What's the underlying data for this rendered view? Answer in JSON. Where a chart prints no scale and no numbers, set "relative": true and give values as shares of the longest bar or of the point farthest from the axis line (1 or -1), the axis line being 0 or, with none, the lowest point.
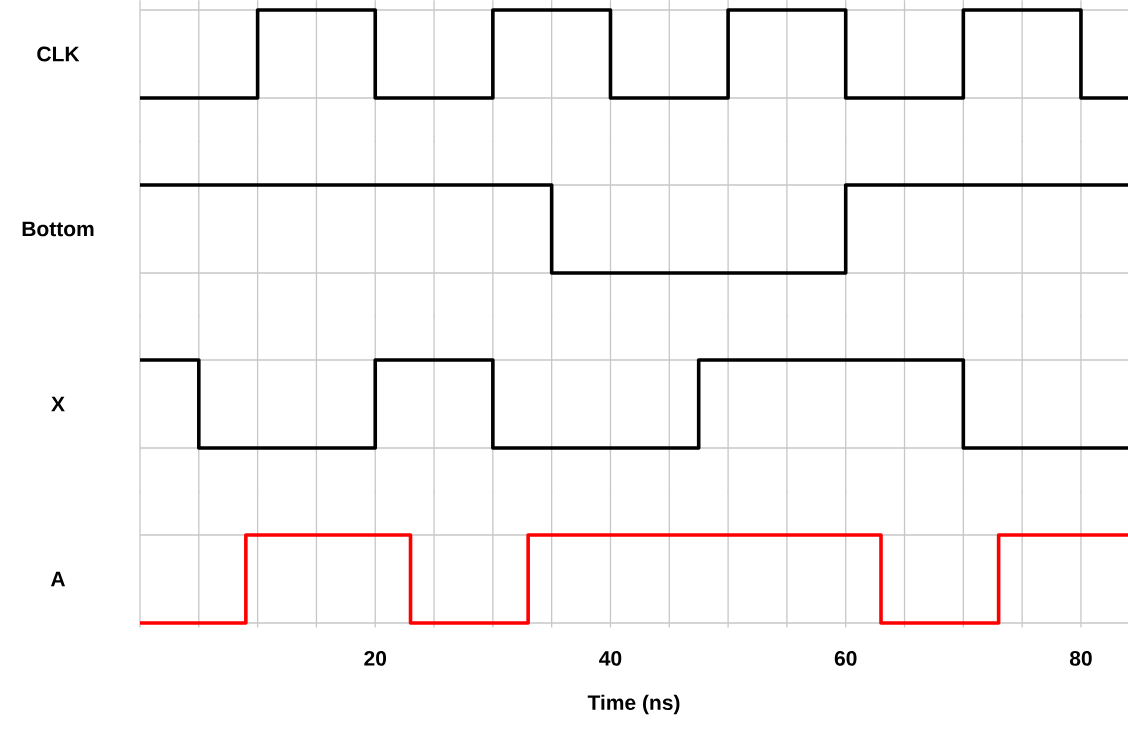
{
  "chart_data": [
    {
      "type": "step",
      "ylabel": "CLK",
      "relative": true,
      "color": "#000000",
      "line_style": "solid",
      "grid": true,
      "tick_labels": false,
      "xlim": [
        0,
        84
      ],
      "xticks": [
        {
          "value": 0,
          "label": null
        },
        {
          "value": 5,
          "label": null
        },
        {
          "value": 10,
          "label": null
        },
        {
          "value": 15,
          "label": null
        },
        20,
        {
          "value": 25,
          "label": null
        },
        {
          "value": 30,
          "label": null
        },
        {
          "value": 35,
          "label": null
        },
        40,
        {
          "value": 45,
          "label": null
        },
        {
          "value": 50,
          "label": null
        },
        {
          "value": 55,
          "label": null
        },
        60,
        {
          "value": 65,
          "label": null
        },
        {
          "value": 70,
          "label": null
        },
        {
          "value": 75,
          "label": null
        },
        80
      ],
      "x": [
        0,
        10,
        20,
        30,
        40,
        50,
        60,
        70,
        80,
        84
      ],
      "values": [
        0,
        1,
        0,
        1,
        0,
        1,
        0,
        1,
        0,
        0
      ]
    },
    {
      "type": "step",
      "ylabel": "Bottom",
      "relative": true,
      "color": "#000000",
      "line_style": "solid",
      "grid": true,
      "tick_labels": false,
      "xlim": [
        0,
        84
      ],
      "xticks": [
        {
          "value": 0,
          "label": null
        },
        {
          "value": 5,
          "label": null
        },
        {
          "value": 10,
          "label": null
        },
        {
          "value": 15,
          "label": null
        },
        20,
        {
          "value": 25,
          "label": null
        },
        {
          "value": 30,
          "label": null
        },
        {
          "value": 35,
          "label": null
        },
        40,
        {
          "value": 45,
          "label": null
        },
        {
          "value": 50,
          "label": null
        },
        {
          "value": 55,
          "label": null
        },
        60,
        {
          "value": 65,
          "label": null
        },
        {
          "value": 70,
          "label": null
        },
        {
          "value": 75,
          "label": null
        },
        80
      ],
      "x": [
        0,
        35,
        60,
        84
      ],
      "values": [
        1,
        0,
        1,
        1
      ]
    },
    {
      "type": "step",
      "ylabel": "X",
      "relative": true,
      "color": "#000000",
      "line_style": "solid",
      "grid": true,
      "tick_labels": false,
      "xlim": [
        0,
        84
      ],
      "xticks": [
        {
          "value": 0,
          "label": null
        },
        {
          "value": 5,
          "label": null
        },
        {
          "value": 10,
          "label": null
        },
        {
          "value": 15,
          "label": null
        },
        20,
        {
          "value": 25,
          "label": null
        },
        {
          "value": 30,
          "label": null
        },
        {
          "value": 35,
          "label": null
        },
        40,
        {
          "value": 45,
          "label": null
        },
        {
          "value": 50,
          "label": null
        },
        {
          "value": 55,
          "label": null
        },
        60,
        {
          "value": 65,
          "label": null
        },
        {
          "value": 70,
          "label": null
        },
        {
          "value": 75,
          "label": null
        },
        80
      ],
      "x": [
        0,
        5,
        20,
        30,
        47.5,
        70,
        84
      ],
      "values": [
        1,
        0,
        1,
        0,
        1,
        0,
        0
      ]
    },
    {
      "type": "step",
      "ylabel": "A",
      "xlabel": "Time (ns)",
      "relative": true,
      "color": "#ff0000",
      "line_style": "solid",
      "grid": true,
      "tick_labels": "x",
      "xlim": [
        0,
        84
      ],
      "xticks": [
        {
          "value": 0,
          "label": null
        },
        {
          "value": 5,
          "label": null
        },
        {
          "value": 10,
          "label": null
        },
        {
          "value": 15,
          "label": null
        },
        20,
        {
          "value": 25,
          "label": null
        },
        {
          "value": 30,
          "label": null
        },
        {
          "value": 35,
          "label": null
        },
        40,
        {
          "value": 45,
          "label": null
        },
        {
          "value": 50,
          "label": null
        },
        {
          "value": 55,
          "label": null
        },
        60,
        {
          "value": 65,
          "label": null
        },
        {
          "value": 70,
          "label": null
        },
        {
          "value": 75,
          "label": null
        },
        80
      ],
      "x": [
        0,
        9,
        23,
        33,
        63,
        73,
        84
      ],
      "values": [
        0,
        1,
        0,
        1,
        0,
        1,
        1
      ]
    }
  ]
}
